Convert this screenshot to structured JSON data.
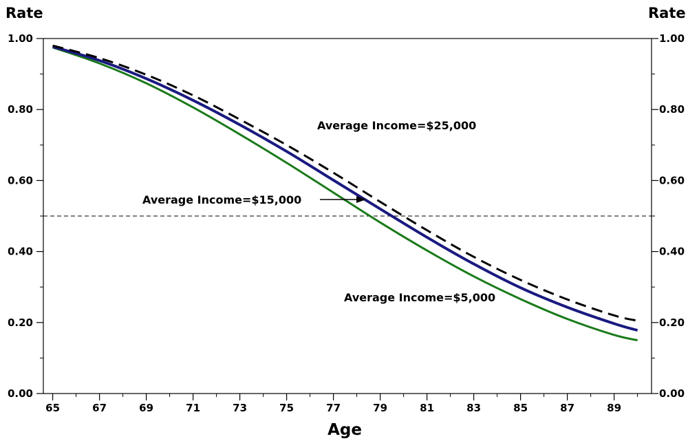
{
  "chart_data": {
    "type": "line",
    "ylabel_left": "Rate",
    "ylabel_right": "Rate",
    "xlabel": "Age",
    "xlim": [
      64.6,
      90.6
    ],
    "ylim": [
      0,
      1
    ],
    "x_ticks_labeled": [
      65,
      67,
      69,
      71,
      73,
      75,
      77,
      79,
      81,
      83,
      85,
      87,
      89
    ],
    "x_ticks_minor": [
      66,
      68,
      70,
      72,
      74,
      76,
      78,
      80,
      82,
      84,
      86,
      88,
      90
    ],
    "y_ticks_labeled": [
      0.0,
      0.2,
      0.4,
      0.6,
      0.8,
      1.0
    ],
    "y_tick_labels": [
      "0.00",
      "0.20",
      "0.40",
      "0.60",
      "0.80",
      "1.00"
    ],
    "y_ticks_minor": [
      0.1,
      0.3,
      0.5,
      0.7,
      0.9
    ],
    "reference_line": {
      "y": 0.5,
      "style": "dashed",
      "color": "#000000"
    },
    "grid": false,
    "series": [
      {
        "name": "Average Income=$25,000",
        "color": "#000000",
        "style": "dashed",
        "x": [
          65,
          67,
          69,
          71,
          73,
          75,
          77,
          79,
          81,
          83,
          85,
          87,
          89,
          90
        ],
        "y": [
          0.98,
          0.945,
          0.898,
          0.84,
          0.772,
          0.7,
          0.622,
          0.54,
          0.46,
          0.385,
          0.32,
          0.265,
          0.22,
          0.205
        ]
      },
      {
        "name": "Average Income=$15,000",
        "color": "#1a1a80",
        "style": "solid",
        "x": [
          65,
          67,
          69,
          71,
          73,
          75,
          77,
          79,
          81,
          83,
          85,
          87,
          89,
          90
        ],
        "y": [
          0.977,
          0.938,
          0.887,
          0.826,
          0.757,
          0.682,
          0.601,
          0.52,
          0.44,
          0.365,
          0.298,
          0.243,
          0.197,
          0.178
        ]
      },
      {
        "name": "Average Income=$5,000",
        "color": "#1a7a1a",
        "style": "solid",
        "x": [
          65,
          67,
          69,
          71,
          73,
          75,
          77,
          79,
          81,
          83,
          85,
          87,
          89,
          90
        ],
        "y": [
          0.975,
          0.93,
          0.874,
          0.806,
          0.73,
          0.65,
          0.566,
          0.482,
          0.403,
          0.33,
          0.266,
          0.21,
          0.165,
          0.15
        ]
      }
    ],
    "annotations": [
      {
        "text": "Average Income=$25,000",
        "series": 0
      },
      {
        "text": "Average Income=$15,000",
        "series": 1,
        "arrow": true
      },
      {
        "text": "Average Income=$5,000",
        "series": 2
      }
    ]
  }
}
